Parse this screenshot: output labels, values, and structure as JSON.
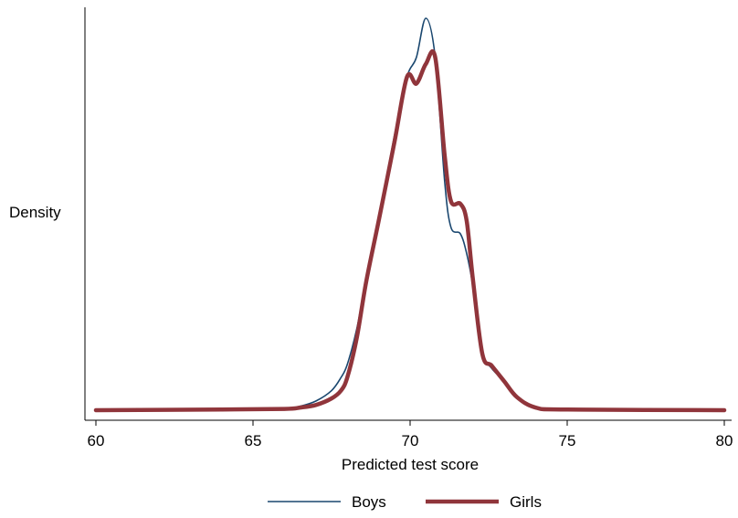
{
  "chart_data": {
    "type": "line",
    "title": "",
    "xlabel": "Predicted test score",
    "ylabel": "Density",
    "xlim": [
      60,
      80
    ],
    "ylim": [
      0,
      0.3
    ],
    "xticks": [
      60,
      65,
      70,
      75,
      80
    ],
    "grid": false,
    "legend_position": "bottom",
    "series": [
      {
        "name": "Boys",
        "color": "#1a476f",
        "x": [
          60,
          64,
          66,
          66.5,
          67,
          67.5,
          67.8,
          68,
          68.3,
          68.6,
          69,
          69.5,
          69.9,
          70.2,
          70.5,
          70.8,
          71.1,
          71.3,
          71.6,
          71.8,
          72,
          72.3,
          72.6,
          73,
          73.4,
          74,
          75,
          80
        ],
        "y": [
          0,
          0.0005,
          0.001,
          0.003,
          0.007,
          0.015,
          0.025,
          0.035,
          0.062,
          0.1,
          0.145,
          0.21,
          0.255,
          0.27,
          0.3,
          0.27,
          0.175,
          0.14,
          0.135,
          0.12,
          0.095,
          0.045,
          0.032,
          0.022,
          0.01,
          0.002,
          0.0005,
          0
        ]
      },
      {
        "name": "Girls",
        "color": "#90353b",
        "x": [
          60,
          64,
          66,
          66.5,
          67,
          67.5,
          67.8,
          68,
          68.3,
          68.6,
          69,
          69.5,
          69.9,
          70.2,
          70.5,
          70.8,
          71.1,
          71.3,
          71.6,
          71.8,
          72,
          72.3,
          72.6,
          73,
          73.4,
          74,
          75,
          80
        ],
        "y": [
          0,
          0.0005,
          0.001,
          0.002,
          0.004,
          0.009,
          0.015,
          0.025,
          0.055,
          0.098,
          0.145,
          0.205,
          0.255,
          0.25,
          0.265,
          0.27,
          0.195,
          0.16,
          0.158,
          0.145,
          0.1,
          0.043,
          0.034,
          0.022,
          0.01,
          0.002,
          0.0005,
          0
        ]
      }
    ]
  }
}
